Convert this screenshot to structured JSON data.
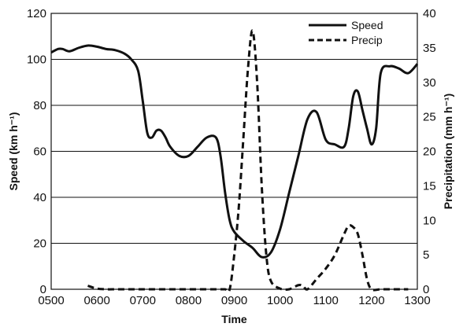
{
  "chart_data": {
    "type": "line",
    "xlabel": "Time",
    "ylabel_left": "Speed (km h⁻¹)",
    "ylabel_right": "Precipitation (mm h⁻¹)",
    "xlim": [
      500,
      1300
    ],
    "ylim_left": [
      0,
      120
    ],
    "ylim_right": [
      0,
      40
    ],
    "x_ticks": [
      "0500",
      "0600",
      "0700",
      "0800",
      "0900",
      "1000",
      "1100",
      "1200",
      "1300"
    ],
    "y_ticks_left": [
      "0",
      "20",
      "40",
      "60",
      "80",
      "100",
      "120"
    ],
    "y_ticks_right": [
      "0",
      "5",
      "10",
      "15",
      "20",
      "25",
      "30",
      "35",
      "40"
    ],
    "grid": "horizontal",
    "legend_placement": "top-right",
    "series": [
      {
        "name": "Speed",
        "axis": "left",
        "style": "solid",
        "color": "#111111",
        "x": [
          500,
          515,
          525,
          540,
          560,
          580,
          600,
          620,
          640,
          660,
          675,
          690,
          700,
          710,
          720,
          730,
          740,
          750,
          760,
          780,
          800,
          820,
          840,
          860,
          870,
          880,
          890,
          900,
          920,
          940,
          960,
          980,
          1000,
          1020,
          1040,
          1060,
          1080,
          1100,
          1120,
          1140,
          1150,
          1160,
          1170,
          1180,
          1190,
          1200,
          1210,
          1220,
          1240,
          1260,
          1280,
          1300
        ],
        "y": [
          103,
          104.5,
          104.5,
          103.5,
          105,
          106,
          105.5,
          104.5,
          104,
          102.5,
          100,
          95,
          82,
          68,
          66,
          69,
          69,
          66,
          62,
          58,
          58,
          62,
          66,
          66,
          58,
          42,
          30,
          25,
          21,
          18,
          14,
          16,
          26,
          42,
          58,
          74,
          77,
          65,
          63,
          62,
          70,
          84,
          86,
          78,
          70,
          63,
          70,
          94,
          97,
          96,
          94,
          98
        ]
      },
      {
        "name": "Precip",
        "axis": "right",
        "style": "dashed",
        "color": "#111111",
        "x": [
          580,
          600,
          620,
          640,
          660,
          680,
          700,
          720,
          740,
          760,
          780,
          800,
          820,
          840,
          860,
          880,
          890,
          900,
          910,
          920,
          930,
          940,
          950,
          960,
          970,
          980,
          1000,
          1020,
          1040,
          1050,
          1060,
          1080,
          1100,
          1120,
          1140,
          1150,
          1160,
          1170,
          1180,
          1190,
          1200,
          1220,
          1240,
          1260,
          1280
        ],
        "y": [
          0.5,
          0.1,
          0,
          0,
          0,
          0,
          0,
          0,
          0,
          0,
          0,
          0,
          0,
          0,
          0,
          0,
          0,
          5,
          12,
          22,
          32,
          37.5,
          30,
          15,
          5,
          1.2,
          0.1,
          0,
          0.6,
          0.5,
          0,
          1.5,
          3,
          5,
          8,
          9.2,
          9,
          8,
          5,
          1.5,
          0,
          0,
          0,
          0,
          0
        ]
      }
    ]
  }
}
